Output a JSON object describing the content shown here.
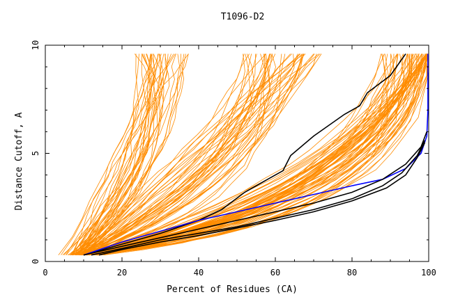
{
  "chart_data": {
    "type": "line",
    "title": "T1096-D2",
    "xlabel": "Percent of Residues (CA)",
    "ylabel": "Distance Cutoff, A",
    "xlim": [
      0,
      100
    ],
    "ylim": [
      0,
      10
    ],
    "x_ticks": [
      0,
      20,
      40,
      60,
      80,
      100
    ],
    "y_ticks": [
      0,
      5,
      10
    ],
    "grid": false,
    "legend": "none",
    "colors": {
      "models": "#ff8c00",
      "highlight_black": "#000000",
      "highlight_blue": "#0000ff"
    },
    "model_band_families": [
      {
        "start": [
          4,
          0.3
        ],
        "spread": 10,
        "count": 35,
        "knee": [
          25,
          5
        ],
        "end": [
          30,
          9.6
        ]
      },
      {
        "start": [
          6,
          0.3
        ],
        "spread": 14,
        "count": 45,
        "knee": [
          45,
          4.5
        ],
        "end": [
          62,
          9.6
        ]
      },
      {
        "start": [
          9,
          0.3
        ],
        "spread": 16,
        "count": 70,
        "knee": [
          82,
          3
        ],
        "end": [
          99,
          9.6
        ]
      }
    ],
    "series": [
      {
        "color": "black",
        "x": [
          10,
          20,
          30,
          40,
          46,
          52,
          58,
          62,
          64,
          70,
          78,
          82,
          84,
          90,
          94
        ],
        "y": [
          0.3,
          0.8,
          1.3,
          1.9,
          2.4,
          3.2,
          3.8,
          4.2,
          4.9,
          5.8,
          6.8,
          7.2,
          7.8,
          8.6,
          9.6
        ]
      },
      {
        "color": "blue",
        "x": [
          10,
          20,
          30,
          40,
          50,
          60,
          70,
          80,
          88,
          94,
          98,
          99.5,
          99.8,
          99.8
        ],
        "y": [
          0.3,
          0.9,
          1.4,
          1.9,
          2.3,
          2.7,
          3.1,
          3.5,
          3.8,
          4.3,
          5.0,
          5.8,
          7.0,
          9.6
        ]
      },
      {
        "color": "black",
        "x": [
          10,
          20,
          30,
          40,
          50,
          60,
          70,
          80,
          88,
          94,
          98,
          99.5
        ],
        "y": [
          0.3,
          0.7,
          1.1,
          1.5,
          1.9,
          2.3,
          2.7,
          3.2,
          3.8,
          4.5,
          5.3,
          6.0
        ]
      },
      {
        "color": "black",
        "x": [
          12,
          20,
          30,
          40,
          50,
          60,
          70,
          80,
          88,
          93,
          97,
          99
        ],
        "y": [
          0.3,
          0.6,
          1.0,
          1.3,
          1.6,
          2.0,
          2.4,
          2.9,
          3.5,
          4.1,
          4.9,
          5.6
        ]
      },
      {
        "color": "black",
        "x": [
          14,
          20,
          30,
          40,
          50,
          60,
          70,
          80,
          89,
          94,
          97,
          99
        ],
        "y": [
          0.3,
          0.55,
          0.9,
          1.2,
          1.55,
          1.9,
          2.3,
          2.8,
          3.4,
          4.0,
          4.8,
          5.5
        ]
      }
    ]
  }
}
